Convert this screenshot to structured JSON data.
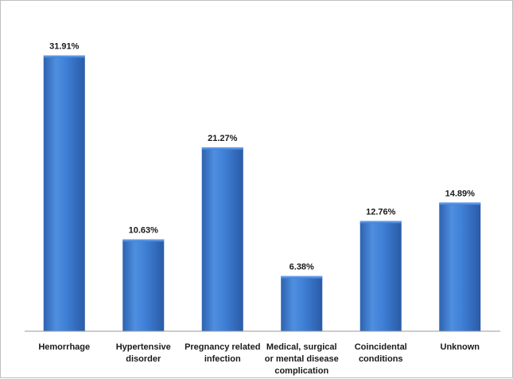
{
  "chart_data": {
    "type": "bar",
    "title": "",
    "xlabel": "",
    "ylabel": "",
    "categories": [
      "Hemorrhage",
      "Hypertensive disorder",
      "Pregnancy related infection",
      "Medical, surgical or mental disease complication",
      "Coincidental conditions",
      "Unknown"
    ],
    "category_label_lines": [
      [
        "Hemorrhage"
      ],
      [
        "Hypertensive",
        "disorder"
      ],
      [
        "Pregnancy related",
        "infection"
      ],
      [
        "Medical, surgical",
        "or mental disease",
        "complication"
      ],
      [
        "Coincidental",
        "conditions"
      ],
      [
        "Unknown"
      ]
    ],
    "values": [
      31.91,
      10.63,
      21.27,
      6.38,
      12.76,
      14.89
    ],
    "data_labels": [
      "31.91%",
      "10.63%",
      "21.27%",
      "6.38%",
      "12.76%",
      "14.89%"
    ],
    "ylim": [
      0,
      35
    ],
    "grid": false,
    "legend": "none",
    "bar_color": "#3a78cf"
  }
}
